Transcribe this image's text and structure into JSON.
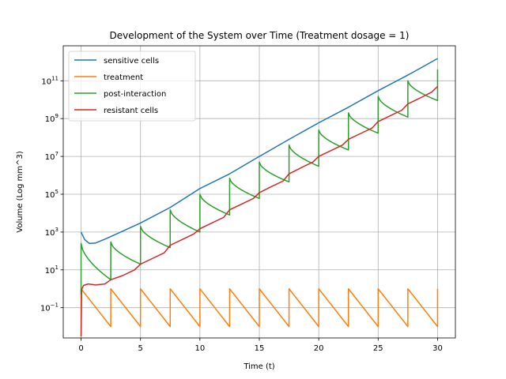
{
  "chart_data": {
    "type": "line",
    "title": "Development of the System over Time (Treatment dosage = 1)",
    "xlabel": "Time (t)",
    "ylabel": "Volume (Log mm^3)",
    "xlim": [
      -1.5,
      31.5
    ],
    "ylim_log10": [
      -2.6,
      12.85
    ],
    "yscale": "log",
    "grid": true,
    "legend_position": "top-left",
    "x_ticks": [
      {
        "value": 0,
        "label": "0"
      },
      {
        "value": 5,
        "label": "5"
      },
      {
        "value": 10,
        "label": "10"
      },
      {
        "value": 15,
        "label": "15"
      },
      {
        "value": 20,
        "label": "20"
      },
      {
        "value": 25,
        "label": "25"
      },
      {
        "value": 30,
        "label": "30"
      }
    ],
    "y_ticks": [
      {
        "log10": -1,
        "base": "10",
        "exp": "−1"
      },
      {
        "log10": 1,
        "base": "10",
        "exp": "1"
      },
      {
        "log10": 3,
        "base": "10",
        "exp": "3"
      },
      {
        "log10": 5,
        "base": "10",
        "exp": "5"
      },
      {
        "log10": 7,
        "base": "10",
        "exp": "7"
      },
      {
        "log10": 9,
        "base": "10",
        "exp": "9"
      },
      {
        "log10": 11,
        "base": "10",
        "exp": "11"
      }
    ],
    "series": [
      {
        "name": "sensitive cells",
        "color": "#1f77b4",
        "points": [
          [
            0,
            1000
          ],
          [
            0.3,
            400
          ],
          [
            0.7,
            250
          ],
          [
            1.2,
            260
          ],
          [
            2,
            420
          ],
          [
            3,
            800
          ],
          [
            5,
            3000
          ],
          [
            7.5,
            20000
          ],
          [
            10,
            200000
          ],
          [
            12.5,
            1200000
          ],
          [
            15,
            10000000
          ],
          [
            17.5,
            80000000
          ],
          [
            20,
            600000000
          ],
          [
            22.5,
            4000000000
          ],
          [
            25,
            30000000000
          ],
          [
            27.5,
            200000000000
          ],
          [
            30,
            1500000000000
          ]
        ]
      },
      {
        "name": "treatment",
        "color": "#ff7f0e",
        "dose_period": 2.5,
        "dose_peak": 1,
        "trough": 0.01,
        "x_end": 30
      },
      {
        "name": "post-interaction",
        "color": "#2ca02c",
        "cycles": [
          {
            "start": 0,
            "peak": 250,
            "trough": 3
          },
          {
            "start": 2.5,
            "peak": 300,
            "trough": 20
          },
          {
            "start": 5,
            "peak": 2000,
            "trough": 150
          },
          {
            "start": 7.5,
            "peak": 15000,
            "trough": 1000
          },
          {
            "start": 10,
            "peak": 100000,
            "trough": 8000
          },
          {
            "start": 12.5,
            "peak": 700000,
            "trough": 60000
          },
          {
            "start": 15,
            "peak": 5000000,
            "trough": 450000
          },
          {
            "start": 17.5,
            "peak": 40000000,
            "trough": 3000000
          },
          {
            "start": 20,
            "peak": 250000000,
            "trough": 22000000
          },
          {
            "start": 22.5,
            "peak": 2000000000,
            "trough": 170000000
          },
          {
            "start": 25,
            "peak": 15000000000,
            "trough": 1200000000
          },
          {
            "start": 27.5,
            "peak": 100000000000,
            "trough": 9000000000
          }
        ],
        "final_point": [
          30,
          400000000000
        ]
      },
      {
        "name": "resistant cells",
        "color": "#d62728",
        "points": [
          [
            0,
            0.003
          ],
          [
            0.05,
            0.9
          ],
          [
            0.2,
            1.5
          ],
          [
            0.6,
            1.8
          ],
          [
            1.2,
            1.6
          ],
          [
            2,
            1.8
          ],
          [
            2.5,
            3
          ],
          [
            3.5,
            5
          ],
          [
            4.5,
            10
          ],
          [
            5,
            20
          ],
          [
            6,
            40
          ],
          [
            7,
            80
          ],
          [
            7.5,
            200
          ],
          [
            8.5,
            400
          ],
          [
            9.5,
            800
          ],
          [
            10,
            1500
          ],
          [
            11,
            3000
          ],
          [
            12,
            6000
          ],
          [
            12.5,
            15000
          ],
          [
            13.5,
            30000
          ],
          [
            14.5,
            60000
          ],
          [
            15,
            120000
          ],
          [
            16,
            250000
          ],
          [
            17,
            500000
          ],
          [
            17.5,
            1200000
          ],
          [
            18.5,
            2500000
          ],
          [
            19.5,
            5000000
          ],
          [
            20,
            10000000
          ],
          [
            21,
            20000000
          ],
          [
            22,
            40000000
          ],
          [
            22.5,
            80000000
          ],
          [
            23.5,
            160000000
          ],
          [
            24.5,
            320000000
          ],
          [
            25,
            700000000
          ],
          [
            26,
            1400000000
          ],
          [
            27,
            2800000000
          ],
          [
            27.5,
            6000000000
          ],
          [
            28.5,
            12000000000
          ],
          [
            29.5,
            25000000000
          ],
          [
            30,
            50000000000
          ]
        ]
      }
    ]
  }
}
